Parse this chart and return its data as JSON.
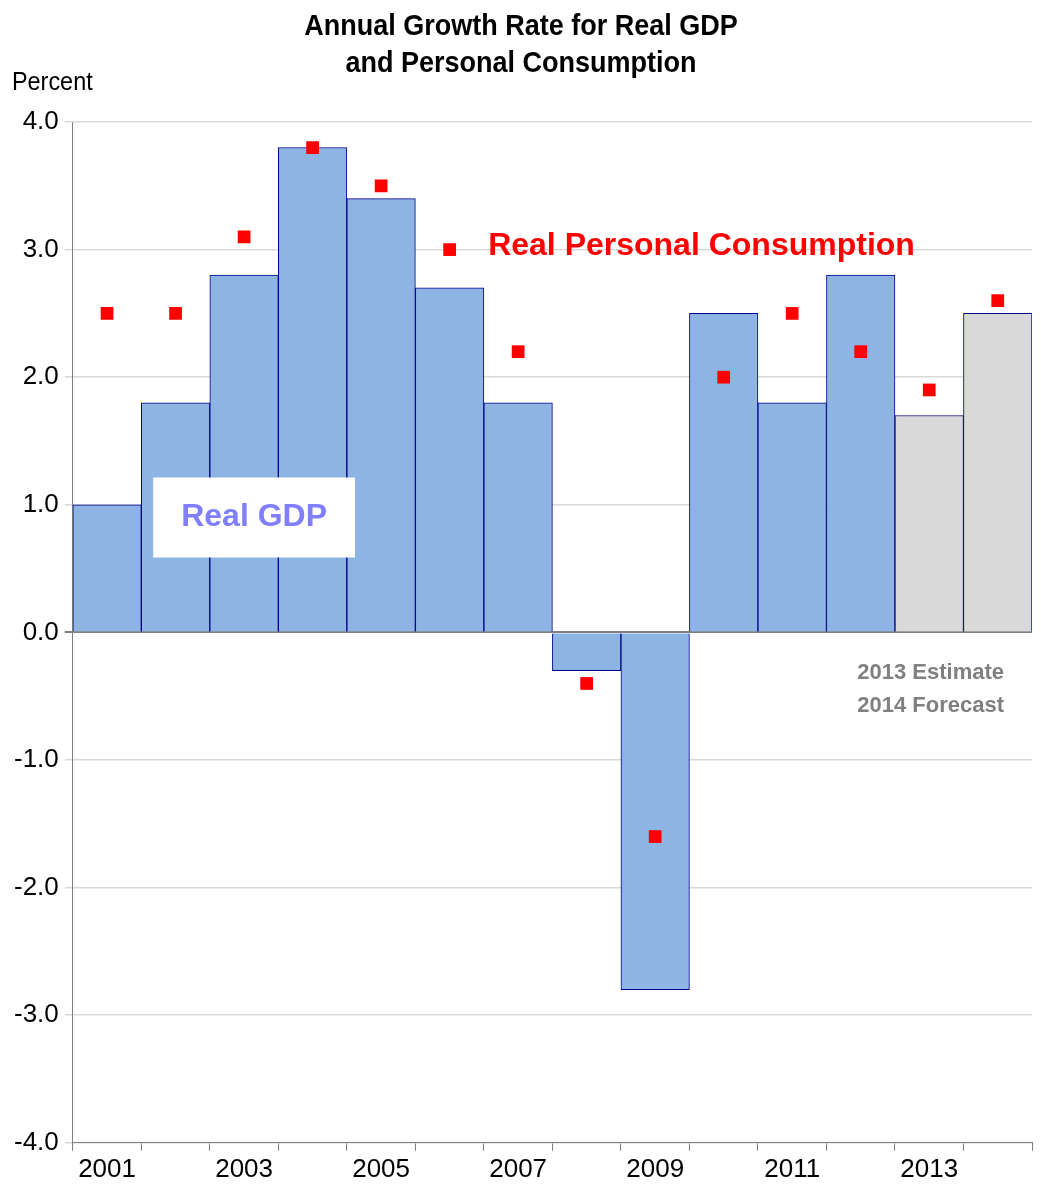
{
  "chart_data": {
    "type": "bar",
    "title": "Annual Growth Rate for Real GDP and Personal Consumption",
    "ylabel": "Percent",
    "categories": [
      "2001",
      null,
      "2003",
      null,
      "2005",
      null,
      "2007",
      null,
      "2009",
      null,
      "2011",
      null,
      "2013",
      null
    ],
    "series": [
      {
        "name": "Real GDP",
        "colors": [
          "#8eb4e3",
          "#8eb4e3",
          "#8eb4e3",
          "#8eb4e3",
          "#8eb4e3",
          "#8eb4e3",
          "#8eb4e3",
          "#8eb4e3",
          "#8eb4e3",
          "#8eb4e3",
          "#8eb4e3",
          "#8eb4e3",
          "#d9d9d9",
          "#d9d9d9"
        ],
        "values": [
          1.0,
          1.8,
          2.8,
          3.8,
          3.4,
          2.7,
          1.8,
          -0.3,
          -2.8,
          2.5,
          1.8,
          2.8,
          1.7,
          2.5
        ]
      },
      {
        "name": "Real Personal Consumption",
        "type": "scatter",
        "color": "#ff0000",
        "values": [
          2.5,
          2.5,
          3.1,
          3.8,
          3.5,
          3.0,
          2.2,
          -0.4,
          -1.6,
          2.0,
          2.5,
          2.2,
          1.9,
          2.6
        ]
      }
    ],
    "annotations": [
      "2013 Estimate",
      "2014 Forecast"
    ],
    "ylim": [
      -4,
      4
    ],
    "yticks": [
      {
        "value": -4,
        "label": "-4.0"
      },
      {
        "value": -3,
        "label": "-3.0"
      },
      {
        "value": -2,
        "label": "-2.0"
      },
      {
        "value": -1,
        "label": "-1.0"
      },
      {
        "value": 0,
        "label": "0.0"
      },
      {
        "value": 1,
        "label": "1.0"
      },
      {
        "value": 2,
        "label": "2.0"
      },
      {
        "value": 3,
        "label": "3.0"
      },
      {
        "value": 4,
        "label": "4.0"
      }
    ],
    "grid": "y",
    "legend": "top right",
    "marker": "square"
  }
}
